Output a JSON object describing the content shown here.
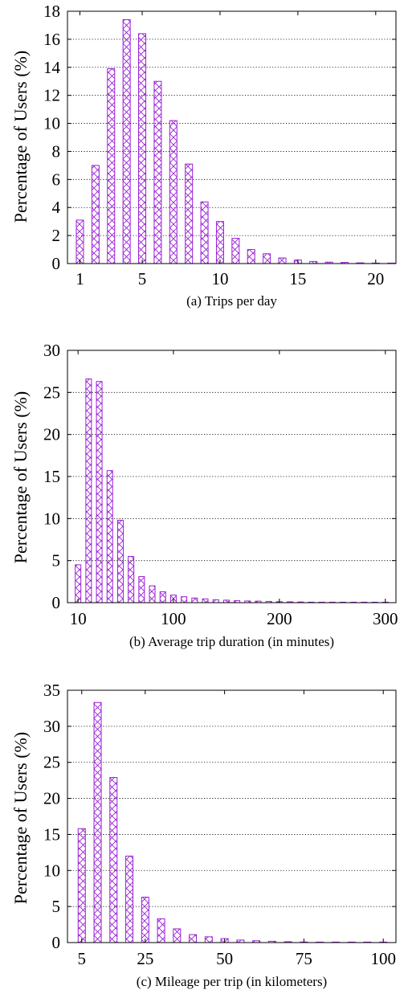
{
  "hatch_color": "#9b1fd6",
  "chart_data": [
    {
      "type": "bar",
      "caption": "(a) Trips per day",
      "ylabel": "Percentage of Users (%)",
      "xlabel": "",
      "x": [
        1,
        2,
        3,
        4,
        5,
        6,
        7,
        8,
        9,
        10,
        11,
        12,
        13,
        14,
        15,
        16,
        17,
        18,
        19,
        20,
        21
      ],
      "values": [
        3.1,
        7.0,
        13.9,
        17.4,
        16.4,
        13.0,
        10.2,
        7.1,
        4.4,
        3.0,
        1.8,
        1.0,
        0.7,
        0.4,
        0.25,
        0.15,
        0.1,
        0.08,
        0.05,
        0.03,
        0.02
      ],
      "xlim": [
        0.2,
        21.3
      ],
      "ylim": [
        0,
        18
      ],
      "xticks": [
        1,
        5,
        10,
        15,
        20
      ],
      "yticks": [
        0,
        2,
        4,
        6,
        8,
        10,
        12,
        14,
        16,
        18
      ],
      "grid": "horizontal dotted"
    },
    {
      "type": "bar",
      "caption": "(b) Average trip duration (in minutes)",
      "ylabel": "Percentage of Users (%)",
      "xlabel": "",
      "x": [
        10,
        20,
        30,
        40,
        50,
        60,
        70,
        80,
        90,
        100,
        110,
        120,
        130,
        140,
        150,
        160,
        170,
        180,
        190,
        200,
        210,
        220,
        230,
        240,
        250,
        260,
        270,
        280,
        290,
        300
      ],
      "values": [
        4.5,
        26.6,
        26.3,
        15.7,
        9.8,
        5.5,
        3.1,
        2.0,
        1.3,
        0.9,
        0.7,
        0.55,
        0.45,
        0.35,
        0.3,
        0.25,
        0.2,
        0.18,
        0.15,
        0.12,
        0.1,
        0.08,
        0.06,
        0.05,
        0.04,
        0.03,
        0.03,
        0.02,
        0.02,
        0.02
      ],
      "xlim": [
        0,
        310
      ],
      "ylim": [
        0,
        30
      ],
      "xticks": [
        10,
        100,
        200,
        300
      ],
      "yticks": [
        0,
        5,
        10,
        15,
        20,
        25,
        30
      ],
      "grid": "horizontal dotted"
    },
    {
      "type": "bar",
      "caption": "(c) Mileage per trip (in kilometers)",
      "ylabel": "Percentage of Users (%)",
      "xlabel": "",
      "x": [
        5,
        10,
        15,
        20,
        25,
        30,
        35,
        40,
        45,
        50,
        55,
        60,
        65,
        70,
        75,
        80,
        85,
        90,
        95,
        100
      ],
      "values": [
        15.8,
        33.3,
        22.9,
        12.0,
        6.3,
        3.3,
        1.9,
        1.1,
        0.8,
        0.55,
        0.35,
        0.25,
        0.18,
        0.12,
        0.08,
        0.06,
        0.05,
        0.04,
        0.03,
        0.02
      ],
      "xlim": [
        0.5,
        104
      ],
      "ylim": [
        0,
        35
      ],
      "xticks": [
        5,
        25,
        50,
        75,
        100
      ],
      "yticks": [
        0,
        5,
        10,
        15,
        20,
        25,
        30,
        35
      ],
      "grid": "horizontal dotted"
    }
  ]
}
